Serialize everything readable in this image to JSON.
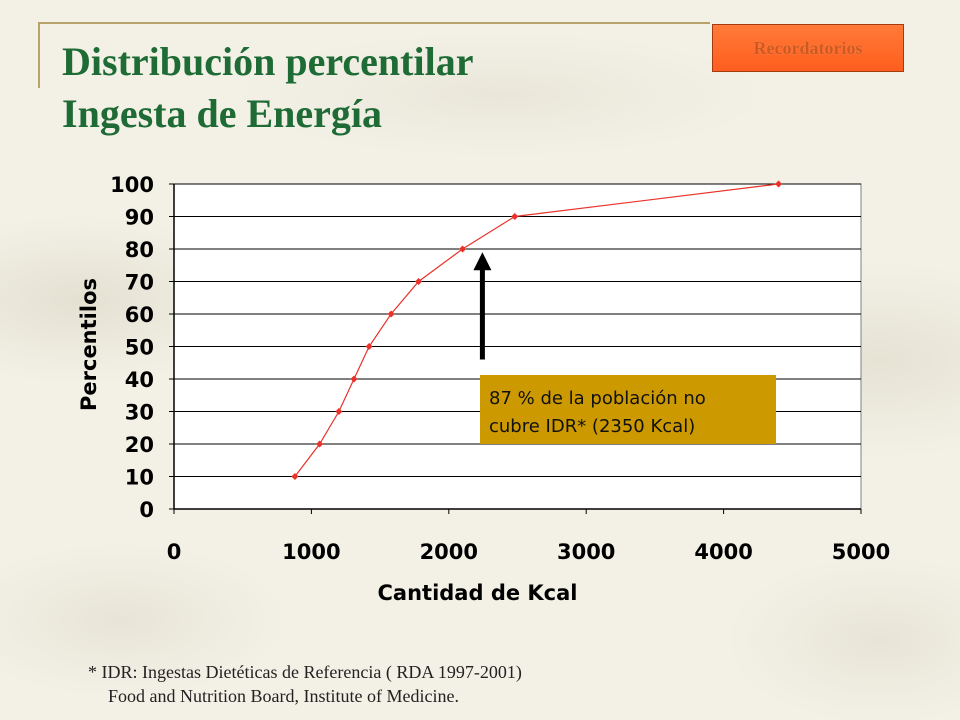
{
  "slide": {
    "title_line1": "Distribución percentilar",
    "title_line2": "Ingesta de Energía",
    "button_label": "Recordatorios",
    "footnote_line1": "* IDR: Ingestas Dietéticas de Referencia ( RDA 1997-2001)",
    "footnote_line2": "Food and Nutrition Board, Institute of Medicine.",
    "colors": {
      "title": "#1f6b36",
      "button": "#ff6a2a",
      "line": "#e8322a",
      "annotation_box": "#cc9900"
    }
  },
  "chart_data": {
    "type": "line",
    "xlabel": "Cantidad de Kcal",
    "ylabel": "Percentilos",
    "xlim": [
      0,
      5000
    ],
    "ylim": [
      0,
      100
    ],
    "xticks": [
      0,
      1000,
      2000,
      3000,
      4000,
      5000
    ],
    "yticks": [
      0,
      10,
      20,
      30,
      40,
      50,
      60,
      70,
      80,
      90,
      100
    ],
    "grid": "horizontal",
    "series": [
      {
        "x": [
          880,
          1060,
          1200,
          1310,
          1420,
          1580,
          1780,
          2100,
          2480,
          4400
        ],
        "y": [
          10,
          20,
          30,
          40,
          50,
          60,
          70,
          80,
          90,
          100
        ],
        "color": "#e8322a"
      }
    ],
    "annotation": {
      "line1": "87 % de la población no",
      "line2": "cubre IDR* (2350 Kcal)",
      "arrow_x": 2230,
      "arrow_y_from": 46,
      "arrow_y_to": 79
    }
  }
}
